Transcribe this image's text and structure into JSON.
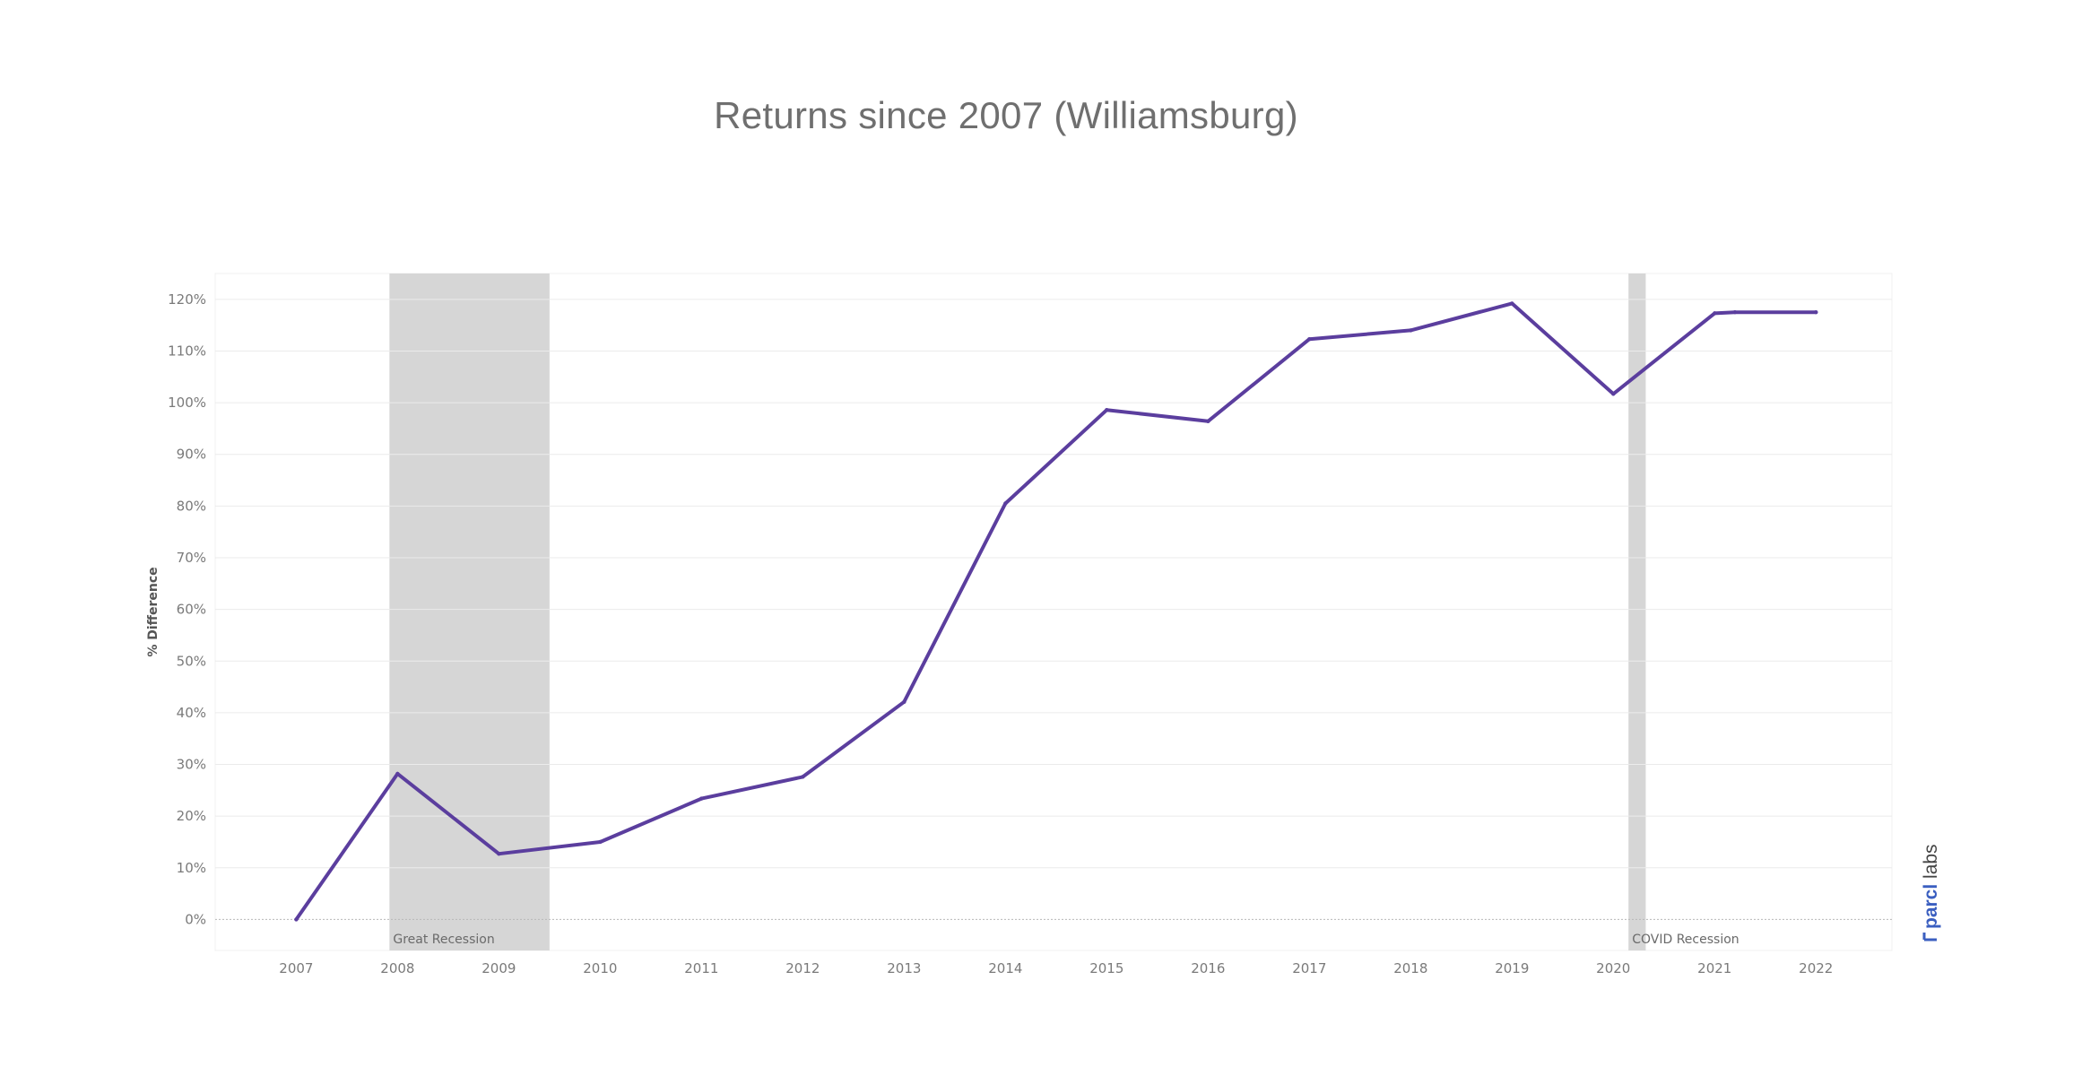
{
  "chart_data": {
    "type": "line",
    "title": "Returns since 2007 (Williamsburg)",
    "ylabel": "% Difference",
    "xlabel": "",
    "x": [
      2007,
      2008,
      2009,
      2010,
      2011,
      2012,
      2013,
      2014,
      2015,
      2016,
      2017,
      2018,
      2019,
      2020,
      2021,
      2021.2,
      2022
    ],
    "xticks": [
      "2007",
      "2008",
      "2009",
      "2010",
      "2011",
      "2012",
      "2013",
      "2014",
      "2015",
      "2016",
      "2017",
      "2018",
      "2019",
      "2020",
      "2021",
      "2022"
    ],
    "series": [
      {
        "values": [
          0,
          28.2,
          12.7,
          15.0,
          23.4,
          27.6,
          42.1,
          80.5,
          98.6,
          96.4,
          112.3,
          114.0,
          119.2,
          101.7,
          117.3,
          117.5,
          117.5
        ],
        "color": "#5b3e9e"
      }
    ],
    "ylim": [
      -6,
      125
    ],
    "yticks": [
      0,
      10,
      20,
      30,
      40,
      50,
      60,
      70,
      80,
      90,
      100,
      110,
      120
    ],
    "ytick_labels": [
      "0%",
      "10%",
      "20%",
      "30%",
      "40%",
      "50%",
      "60%",
      "70%",
      "80%",
      "90%",
      "100%",
      "110%",
      "120%"
    ],
    "xlim": [
      2006.2,
      2022.75
    ],
    "grid": true,
    "shaded_regions": [
      {
        "label": "Great Recession",
        "start": 2007.92,
        "end": 2009.5,
        "color": "#d6d6d6"
      },
      {
        "label": "COVID Recession",
        "start": 2020.15,
        "end": 2020.32,
        "color": "#d6d6d6"
      }
    ]
  },
  "brand": {
    "name_bold": "parcl",
    "name_light": " labs",
    "color": "#3b5fc0"
  }
}
